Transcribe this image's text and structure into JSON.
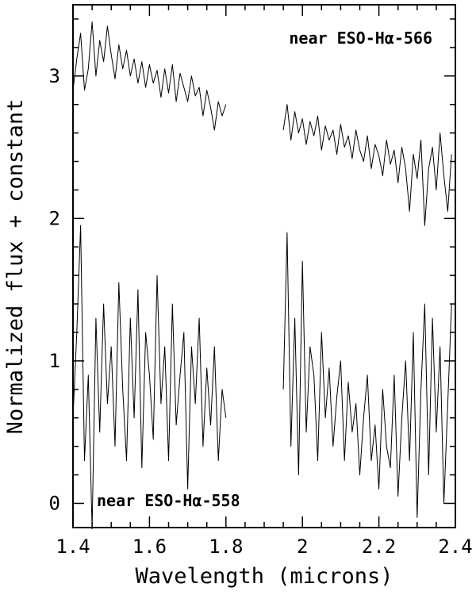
{
  "chart_data": {
    "type": "line",
    "title": "",
    "xlabel": "Wavelength (microns)",
    "ylabel": "Normalized flux + constant",
    "xlim": [
      1.4,
      2.4
    ],
    "ylim": [
      -0.17,
      3.5
    ],
    "xticks": [
      1.4,
      1.6,
      1.8,
      2.0,
      2.2,
      2.4
    ],
    "xtick_labels": [
      "1.4",
      "1.6",
      "1.8",
      "2",
      "2.2",
      "2.4"
    ],
    "yticks": [
      0,
      1,
      2,
      3
    ],
    "ytick_labels": [
      "0",
      "1",
      "2",
      "3"
    ],
    "grid": false,
    "legend": "none",
    "line_color": "#000000",
    "annotations": [
      {
        "text": "near ESO-Hα-566"
      },
      {
        "text": "near ESO-Hα-558"
      }
    ],
    "series": [
      {
        "x": [
          1.4,
          1.41,
          1.42,
          1.43,
          1.44,
          1.45,
          1.46,
          1.47,
          1.48,
          1.49,
          1.5,
          1.51,
          1.52,
          1.53,
          1.54,
          1.55,
          1.56,
          1.57,
          1.58,
          1.59,
          1.6,
          1.61,
          1.62,
          1.63,
          1.64,
          1.65,
          1.66,
          1.67,
          1.68,
          1.69,
          1.7,
          1.71,
          1.72,
          1.73,
          1.74,
          1.75,
          1.76,
          1.77,
          1.78,
          1.79,
          1.8
        ],
        "y": [
          2.9,
          3.12,
          3.3,
          2.9,
          3.05,
          3.38,
          3.0,
          3.25,
          3.1,
          3.35,
          3.15,
          2.98,
          3.22,
          3.05,
          3.18,
          3.0,
          3.12,
          2.95,
          3.1,
          2.92,
          3.08,
          2.95,
          3.04,
          2.85,
          3.05,
          2.88,
          3.08,
          2.82,
          3.02,
          2.92,
          2.82,
          3.0,
          2.86,
          2.92,
          2.72,
          2.9,
          2.78,
          2.62,
          2.82,
          2.72,
          2.8
        ]
      },
      {
        "x": [
          1.95,
          1.96,
          1.97,
          1.98,
          1.99,
          2.0,
          2.01,
          2.02,
          2.03,
          2.04,
          2.05,
          2.06,
          2.07,
          2.08,
          2.09,
          2.1,
          2.11,
          2.12,
          2.13,
          2.14,
          2.15,
          2.16,
          2.17,
          2.18,
          2.19,
          2.2,
          2.21,
          2.22,
          2.23,
          2.24,
          2.25,
          2.26,
          2.27,
          2.28,
          2.29,
          2.3,
          2.31,
          2.32,
          2.33,
          2.34,
          2.35,
          2.36,
          2.37,
          2.38,
          2.39
        ],
        "y": [
          2.62,
          2.8,
          2.55,
          2.75,
          2.6,
          2.7,
          2.52,
          2.68,
          2.58,
          2.72,
          2.48,
          2.65,
          2.55,
          2.62,
          2.45,
          2.66,
          2.5,
          2.58,
          2.42,
          2.62,
          2.48,
          2.4,
          2.58,
          2.35,
          2.52,
          2.44,
          2.3,
          2.55,
          2.38,
          2.48,
          2.25,
          2.5,
          2.35,
          2.05,
          2.45,
          2.28,
          2.55,
          1.95,
          2.35,
          2.5,
          2.2,
          2.6,
          2.3,
          2.05,
          2.45
        ]
      },
      {
        "x": [
          1.4,
          1.41,
          1.42,
          1.43,
          1.44,
          1.45,
          1.46,
          1.47,
          1.48,
          1.49,
          1.5,
          1.51,
          1.52,
          1.53,
          1.54,
          1.55,
          1.56,
          1.57,
          1.58,
          1.59,
          1.6,
          1.61,
          1.62,
          1.63,
          1.64,
          1.65,
          1.66,
          1.67,
          1.68,
          1.69,
          1.7,
          1.71,
          1.72,
          1.73,
          1.74,
          1.75,
          1.76,
          1.77,
          1.78,
          1.79,
          1.8
        ],
        "y": [
          0.6,
          1.2,
          1.95,
          0.3,
          0.9,
          -0.18,
          1.3,
          0.5,
          1.4,
          0.7,
          1.1,
          0.4,
          1.55,
          0.8,
          0.3,
          1.3,
          0.6,
          1.5,
          0.25,
          1.2,
          0.9,
          0.45,
          1.6,
          0.7,
          1.1,
          0.3,
          1.4,
          0.55,
          0.9,
          1.2,
          0.1,
          1.1,
          0.7,
          1.3,
          0.4,
          0.95,
          0.55,
          1.1,
          0.3,
          0.8,
          0.6
        ]
      },
      {
        "x": [
          1.95,
          1.96,
          1.97,
          1.98,
          1.99,
          2.0,
          2.01,
          2.02,
          2.03,
          2.04,
          2.05,
          2.06,
          2.07,
          2.08,
          2.09,
          2.1,
          2.11,
          2.12,
          2.13,
          2.14,
          2.15,
          2.16,
          2.17,
          2.18,
          2.19,
          2.2,
          2.21,
          2.22,
          2.23,
          2.24,
          2.25,
          2.26,
          2.27,
          2.28,
          2.29,
          2.3,
          2.31,
          2.32,
          2.33,
          2.34,
          2.35,
          2.36,
          2.37,
          2.38,
          2.39
        ],
        "y": [
          0.8,
          1.9,
          0.4,
          1.3,
          0.2,
          1.7,
          0.5,
          1.1,
          0.9,
          0.3,
          1.2,
          0.6,
          0.95,
          0.4,
          0.75,
          1.0,
          0.3,
          0.85,
          0.5,
          0.7,
          0.2,
          0.6,
          0.9,
          0.3,
          0.55,
          0.1,
          0.8,
          0.4,
          0.25,
          0.9,
          0.05,
          0.6,
          1.0,
          0.3,
          1.2,
          -0.1,
          0.8,
          1.4,
          0.2,
          1.3,
          0.5,
          1.1,
          0.0,
          0.7,
          1.4
        ]
      }
    ]
  }
}
